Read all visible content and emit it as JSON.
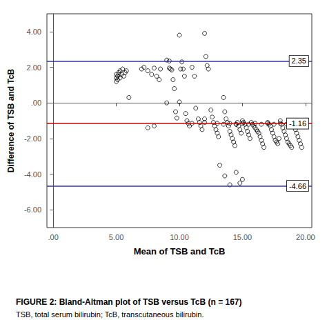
{
  "chart_data": {
    "type": "scatter",
    "title": "FIGURE 2: Bland-Altman plot of TSB versus TcB (n = 167)",
    "subtitle": "TSB, total serum bilirubin; TcB, transcutaneous bilirubin.",
    "xlabel": "Mean of TSB and TcB",
    "ylabel": "Difference of TSB and TcB",
    "x": [
      5.0,
      5.1,
      5.2,
      5.3,
      5.4,
      5.0,
      5.5,
      5.1,
      5.7,
      5.6,
      5.0,
      5.3,
      5.8,
      5.2,
      6.0,
      7.0,
      7.2,
      7.5,
      7.8,
      8.0,
      8.5,
      8.2,
      8.4,
      9.0,
      9.2,
      9.3,
      9.4,
      9.5,
      9.6,
      9.7,
      9.8,
      10.0,
      10.1,
      10.2,
      10.3,
      10.4,
      10.5,
      10.6,
      10.7,
      10.8,
      9.2,
      11.0,
      11.2,
      11.3,
      11.5,
      11.6,
      11.7,
      11.8,
      12.0,
      12.1,
      12.2,
      12.3,
      12.5,
      12.6,
      12.7,
      12.8,
      12.9,
      13.0,
      13.1,
      13.5,
      13.6,
      13.7,
      13.8,
      13.9,
      14.0,
      14.1,
      14.2,
      14.3,
      14.4,
      14.5,
      14.6,
      14.7,
      14.8,
      14.9,
      15.0,
      15.1,
      15.2,
      15.3,
      15.4,
      15.5,
      15.6,
      15.7,
      15.8,
      15.9,
      16.0,
      16.1,
      16.2,
      16.3,
      16.4,
      16.5,
      16.6,
      16.7,
      17.0,
      17.1,
      17.2,
      17.3,
      17.4,
      17.5,
      17.6,
      17.7,
      17.8,
      17.9,
      18.0,
      18.1,
      18.2,
      18.3,
      18.4,
      18.5,
      18.6,
      18.7,
      18.8,
      18.9,
      19.0,
      19.1,
      19.2,
      19.3,
      19.4,
      19.5,
      19.6,
      19.7,
      14.0,
      14.5,
      13.2,
      13.6,
      15.0,
      14.8,
      12.0,
      8.0,
      7.5,
      9.0,
      10.0,
      11.0,
      12.0,
      13.0,
      13.5,
      14.0,
      14.5,
      15.0,
      15.5,
      16.0,
      16.5,
      17.0,
      17.5,
      18.0,
      18.5,
      19.0
    ],
    "values": [
      1.6,
      1.5,
      1.7,
      1.8,
      1.6,
      1.4,
      1.9,
      1.3,
      1.7,
      1.5,
      1.2,
      1.4,
      1.8,
      1.6,
      0.3,
      1.9,
      2.0,
      1.8,
      1.6,
      1.95,
      1.9,
      1.5,
      1.3,
      2.4,
      1.95,
      1.9,
      1.85,
      1.3,
      0.8,
      -0.5,
      -0.85,
      3.8,
      1.9,
      2.3,
      1.9,
      1.5,
      -0.6,
      -1.0,
      -1.15,
      -1.3,
      2.35,
      2.0,
      1.5,
      -0.3,
      -0.9,
      -1.1,
      -1.3,
      -1.5,
      3.9,
      2.6,
      2.1,
      1.9,
      -0.4,
      -0.8,
      -1.1,
      -1.3,
      -1.5,
      -1.7,
      -1.9,
      0.3,
      -0.5,
      -0.9,
      -1.1,
      -1.3,
      -1.6,
      -1.8,
      -2.0,
      -2.2,
      -2.4,
      -1.2,
      -1.1,
      -1.3,
      -1.5,
      -1.7,
      -1.0,
      -1.1,
      -1.2,
      -1.4,
      -1.6,
      -1.8,
      -2.0,
      -1.1,
      -1.2,
      -1.3,
      -1.4,
      -1.5,
      -1.6,
      -1.7,
      -1.9,
      -2.1,
      -2.3,
      -2.5,
      -1.1,
      -1.2,
      -1.3,
      -1.5,
      -1.7,
      -1.9,
      -2.1,
      -2.2,
      -2.3,
      -2.0,
      -1.0,
      -1.2,
      -1.4,
      -1.6,
      -1.8,
      -2.0,
      -2.2,
      -2.3,
      -2.4,
      -2.5,
      -1.1,
      -1.3,
      -1.5,
      -1.7,
      -1.9,
      -2.1,
      -2.3,
      -2.5,
      -4.6,
      -3.9,
      -3.5,
      -4.1,
      -4.3,
      -4.5,
      -0.9,
      -1.3,
      -1.4,
      0.0,
      0.05,
      -1.15,
      -1.1,
      -1.15,
      -1.2,
      -1.15,
      -1.2,
      -1.15,
      -1.2,
      -1.15,
      -1.2,
      -1.15,
      -1.2,
      -1.15,
      -1.2,
      -1.15
    ],
    "color": "black",
    "marker": "circle",
    "annotations": [
      {
        "type": "hline",
        "y": 2.35,
        "label": "2.35",
        "color": "#3333aa"
      },
      {
        "type": "hline",
        "y": -1.16,
        "label": "-1.16",
        "color": "#cc0000"
      },
      {
        "type": "hline",
        "y": -4.66,
        "label": "-4.66",
        "color": "#3333aa"
      }
    ],
    "xlim": [
      -0.5,
      20.5
    ],
    "ylim": [
      -7.0,
      5.0
    ],
    "xticks": [
      {
        "value": 0.0,
        "label": ".00"
      },
      {
        "value": 5.0,
        "label": "5.00"
      },
      {
        "value": 10.0,
        "label": "10.00"
      },
      {
        "value": 15.0,
        "label": "15.00"
      },
      {
        "value": 20.0,
        "label": "20.00"
      }
    ],
    "yticks": [
      {
        "value": -6.0,
        "label": "-6.00"
      },
      {
        "value": -4.0,
        "label": "-4.00"
      },
      {
        "value": -2.0,
        "label": "-2.00"
      },
      {
        "value": 0.0,
        "label": ".00"
      },
      {
        "value": 2.0,
        "label": "2.00"
      },
      {
        "value": 4.0,
        "label": "4.00"
      }
    ],
    "grid": false
  }
}
